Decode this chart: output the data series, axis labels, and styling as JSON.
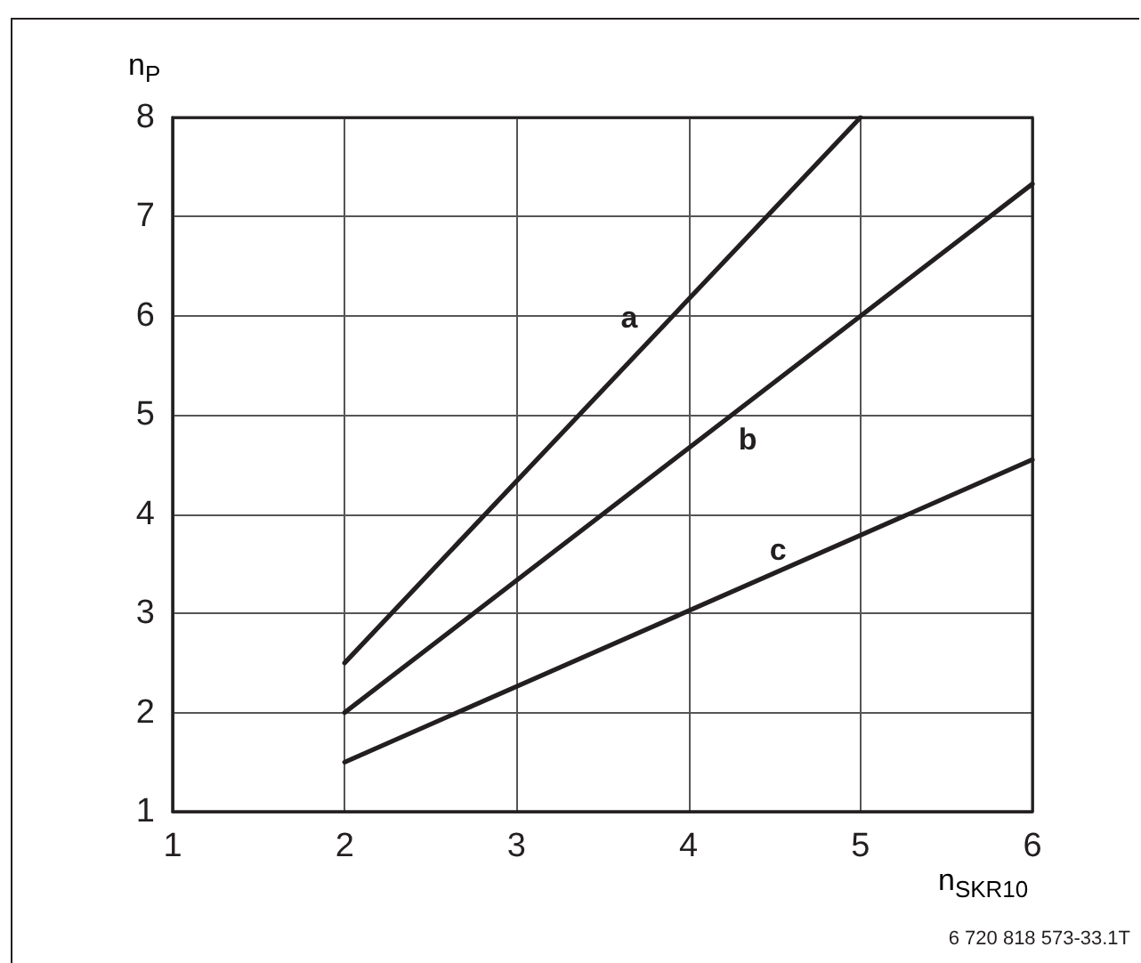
{
  "chart_data": {
    "type": "line",
    "xlabel": "n$_{SKR10}$",
    "ylabel": "n$_{P}$",
    "annotations": [
      "6 720 818 573-33.1T"
    ],
    "xlim": [
      1,
      6
    ],
    "xticks": [
      1,
      2,
      3,
      4,
      5,
      6
    ],
    "ylim": [
      1,
      8
    ],
    "yticks": [
      1,
      2,
      3,
      4,
      5,
      6,
      7,
      8
    ],
    "grid": true,
    "legend": false,
    "marker": "none",
    "line_style": "solid",
    "series": [
      {
        "name": "a",
        "color": "#231f20",
        "x": [
          2,
          5
        ],
        "values": [
          2.5,
          8
        ]
      },
      {
        "name": "b",
        "color": "#231f20",
        "x": [
          2,
          6
        ],
        "values": [
          2,
          7.33
        ]
      },
      {
        "name": "c",
        "color": "#231f20",
        "x": [
          2,
          6
        ],
        "values": [
          1.5,
          4.55
        ]
      }
    ]
  }
}
